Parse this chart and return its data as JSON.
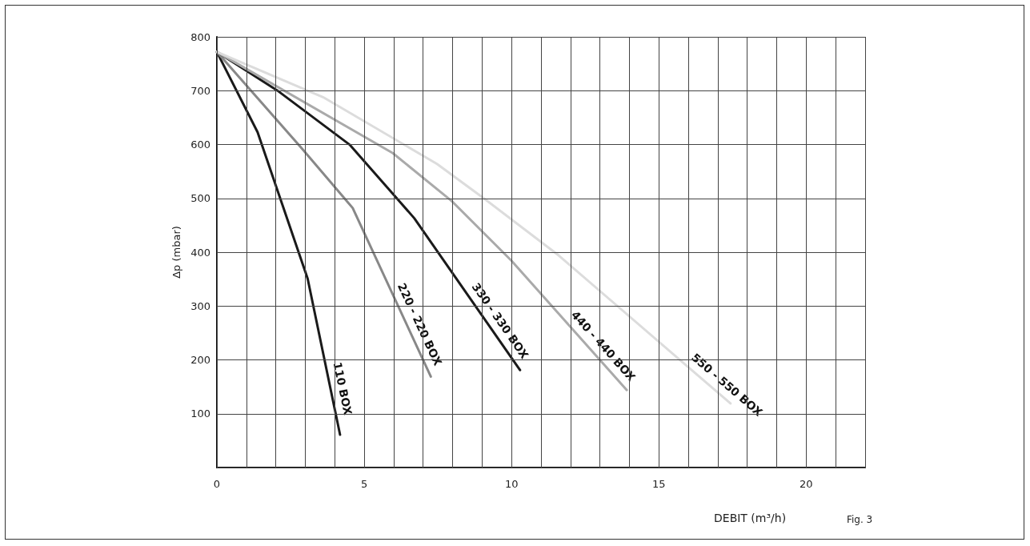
{
  "chart_data": {
    "type": "line",
    "xlabel": "DEBIT (m³/h)",
    "ylabel": "Δp (mbar)",
    "annotations": [
      "Fig. 3"
    ],
    "xlim": [
      0,
      22
    ],
    "ylim": [
      0,
      800
    ],
    "xticks": [
      0,
      {
        "value": 1,
        "label": null
      },
      {
        "value": 2,
        "label": null
      },
      {
        "value": 3,
        "label": null
      },
      {
        "value": 4,
        "label": null
      },
      5,
      {
        "value": 6,
        "label": null
      },
      {
        "value": 7,
        "label": null
      },
      {
        "value": 8,
        "label": null
      },
      {
        "value": 9,
        "label": null
      },
      10,
      {
        "value": 11,
        "label": null
      },
      {
        "value": 12,
        "label": null
      },
      {
        "value": 13,
        "label": null
      },
      {
        "value": 14,
        "label": null
      },
      15,
      {
        "value": 16,
        "label": null
      },
      {
        "value": 17,
        "label": null
      },
      {
        "value": 18,
        "label": null
      },
      {
        "value": 19,
        "label": null
      },
      20,
      {
        "value": 21,
        "label": null
      },
      {
        "value": 22,
        "label": null
      }
    ],
    "yticks": [
      {
        "value": 0,
        "label": null
      },
      100,
      200,
      300,
      400,
      500,
      600,
      700,
      800
    ],
    "grid": true,
    "marker": "none",
    "line_style": "solid",
    "series": [
      {
        "name": "110 BOX",
        "color": "#1a1a1a",
        "x": [
          0,
          1.38,
          3.08,
          4.18
        ],
        "values": [
          772,
          623,
          351,
          61
        ]
      },
      {
        "name": "220 - 220 BOX",
        "color": "#888888",
        "x": [
          0,
          2.88,
          4.61,
          7.26
        ],
        "values": [
          772,
          593,
          482,
          169
        ]
      },
      {
        "name": "330 - 330 BOX",
        "color": "#1a1a1a",
        "x": [
          0,
          2.11,
          4.52,
          6.7,
          10.29
        ],
        "values": [
          772,
          698,
          599,
          463,
          181
        ]
      },
      {
        "name": "440 - 440 BOX",
        "color": "#aaaaaa",
        "x": [
          0,
          5.97,
          7.97,
          10,
          13.91
        ],
        "values": [
          772,
          584,
          495,
          384,
          144
        ]
      },
      {
        "name": "550 - 550 BOX",
        "color": "#dcdcdc",
        "x": [
          0,
          3.6,
          7.47,
          9.06,
          11.6,
          16.07,
          17.43
        ],
        "values": [
          772,
          688,
          564,
          500,
          394,
          183,
          119
        ]
      }
    ]
  }
}
